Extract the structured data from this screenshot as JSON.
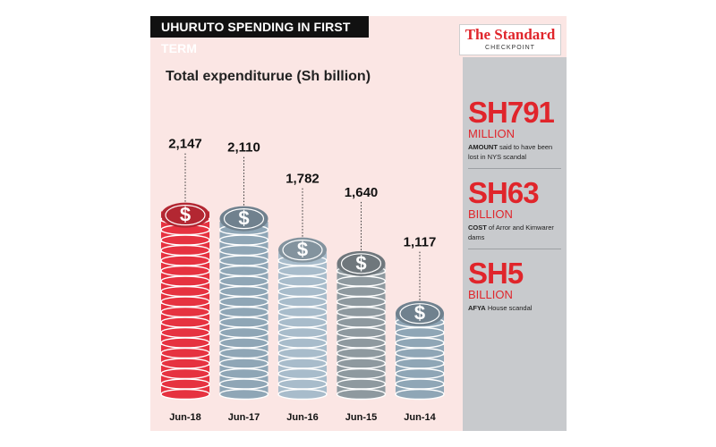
{
  "header": {
    "title": "UHURUTO SPENDING IN FIRST TERM"
  },
  "logo": {
    "name": "The Standard",
    "sub": "CHECKPOINT"
  },
  "chart_data": {
    "type": "bar",
    "title": "Total expendituruе (Sh billion)",
    "subtitle": "Total expenditurue (Sh billion)",
    "categories": [
      "Jun-18",
      "Jun-17",
      "Jun-16",
      "Jun-15",
      "Jun-14"
    ],
    "values": [
      2147,
      2110,
      1782,
      1640,
      1117
    ],
    "value_labels": [
      "2,147",
      "2,110",
      "1,782",
      "1,640",
      "1,117"
    ],
    "bar_colors": [
      "#e63240",
      "#8fa6b6",
      "#a8bccb",
      "#8e999f",
      "#8fa6b6"
    ],
    "marker_icon": "dollar-sign-icon",
    "ylim": [
      0,
      2200
    ],
    "grid": false,
    "legend": "none"
  },
  "stats": [
    {
      "value": "SH791",
      "unit": "MILLION",
      "desc_bold": "AMOUNT",
      "desc": " said to have been lost in NYS scandal"
    },
    {
      "value": "SH63",
      "unit": "BILLION",
      "desc_bold": "COST",
      "desc": " of Arror and Kimwarer dams"
    },
    {
      "value": "SH5",
      "unit": "BILLION",
      "desc_bold": "AFYA",
      "desc": " House scandal"
    }
  ],
  "colors": {
    "accent": "#e0252b",
    "panel": "#fbe6e4",
    "sidebar": "#c8cacd"
  }
}
